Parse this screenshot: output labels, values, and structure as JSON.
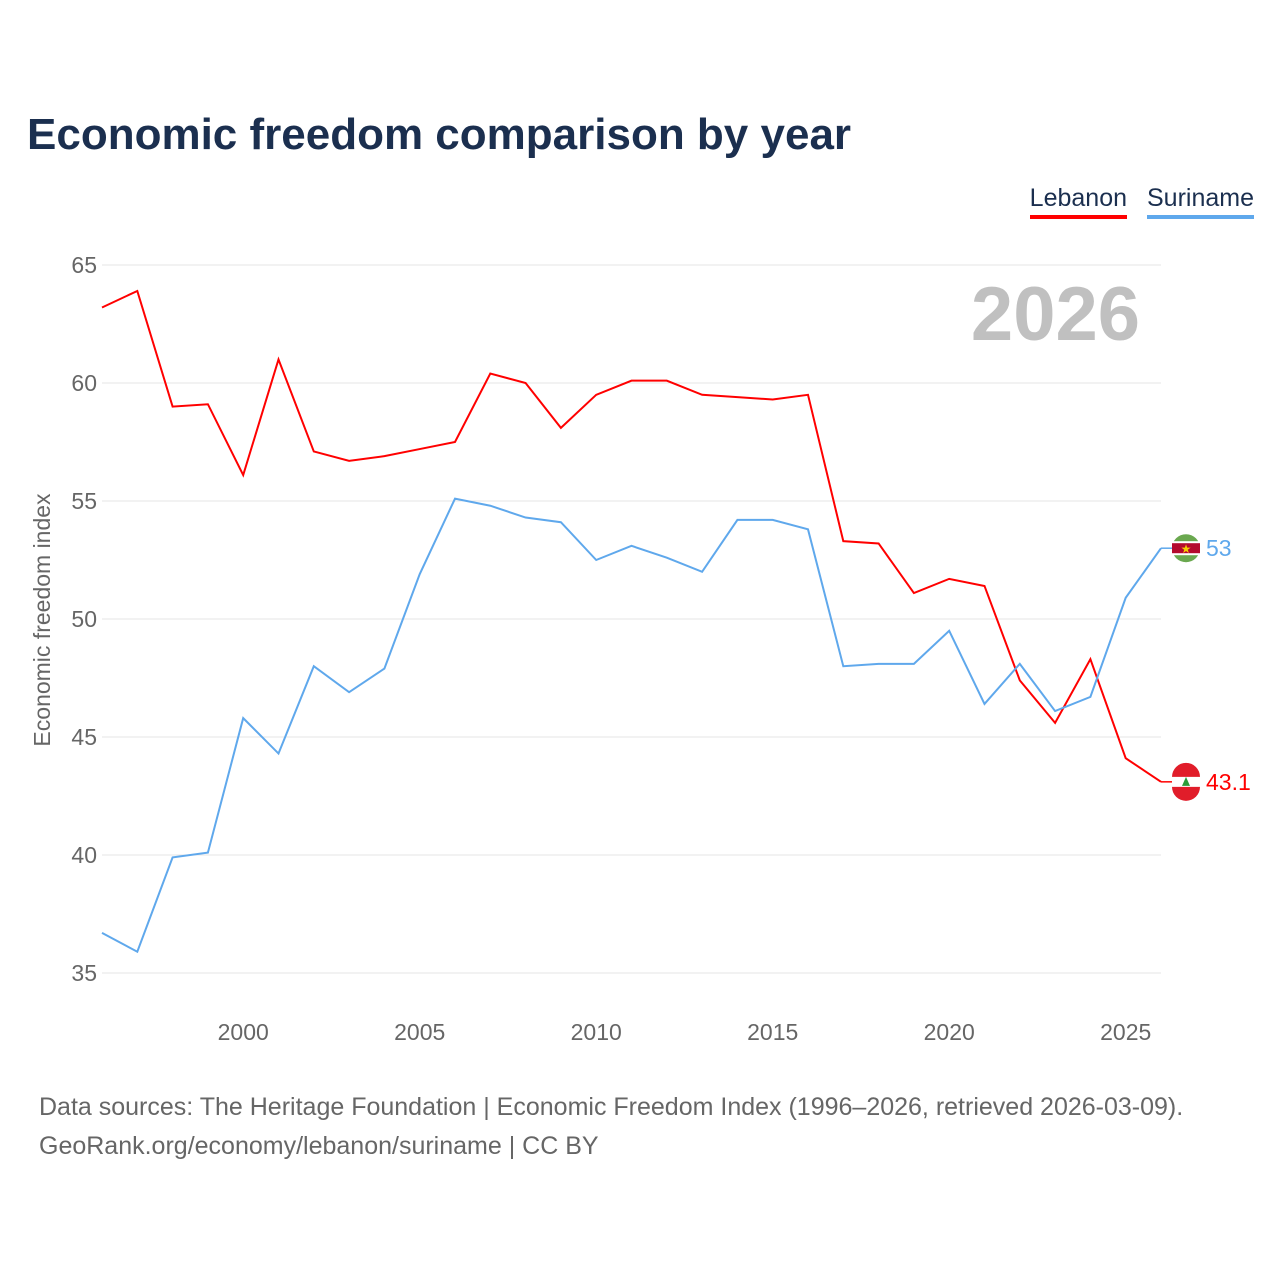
{
  "chart_data": {
    "type": "line",
    "title": "Economic freedom comparison by year",
    "xlabel": "",
    "ylabel": "Economic freedom index",
    "xlim": [
      1996,
      2026
    ],
    "ylim": [
      35,
      65
    ],
    "yticks": [
      35,
      40,
      45,
      50,
      55,
      60,
      65
    ],
    "xticks": [
      2000,
      2005,
      2010,
      2015,
      2020,
      2025
    ],
    "grid": true,
    "legend_position": "top-right",
    "watermark_year": "2026",
    "x": [
      1996,
      1997,
      1998,
      1999,
      2000,
      2001,
      2002,
      2003,
      2004,
      2005,
      2006,
      2007,
      2008,
      2009,
      2010,
      2011,
      2012,
      2013,
      2014,
      2015,
      2016,
      2017,
      2018,
      2019,
      2020,
      2021,
      2022,
      2023,
      2024,
      2025,
      2026
    ],
    "series": [
      {
        "name": "Lebanon",
        "color": "#ff0000",
        "end_label": "43.1",
        "values": [
          63.2,
          63.9,
          59.0,
          59.1,
          56.1,
          61.0,
          57.1,
          56.7,
          56.9,
          57.2,
          57.5,
          60.4,
          60.0,
          58.1,
          59.5,
          60.1,
          60.1,
          59.5,
          59.4,
          59.3,
          59.5,
          53.3,
          53.2,
          51.1,
          51.7,
          51.4,
          47.4,
          45.6,
          48.3,
          44.1,
          43.1
        ]
      },
      {
        "name": "Suriname",
        "color": "#5fa8ec",
        "end_label": "53",
        "values": [
          36.7,
          35.9,
          39.9,
          40.1,
          45.8,
          44.3,
          48.0,
          46.9,
          47.9,
          51.9,
          55.1,
          54.8,
          54.3,
          54.1,
          52.5,
          53.1,
          52.6,
          52.0,
          54.2,
          54.2,
          53.8,
          48.0,
          48.1,
          48.1,
          49.5,
          46.4,
          48.1,
          46.1,
          46.7,
          50.9,
          53.0
        ]
      }
    ]
  },
  "footer": {
    "sources": "Data sources: The Heritage Foundation | Economic Freedom Index (1996–2026, retrieved 2026-03-09).",
    "credit": "GeoRank.org/economy/lebanon/suriname | CC BY"
  }
}
